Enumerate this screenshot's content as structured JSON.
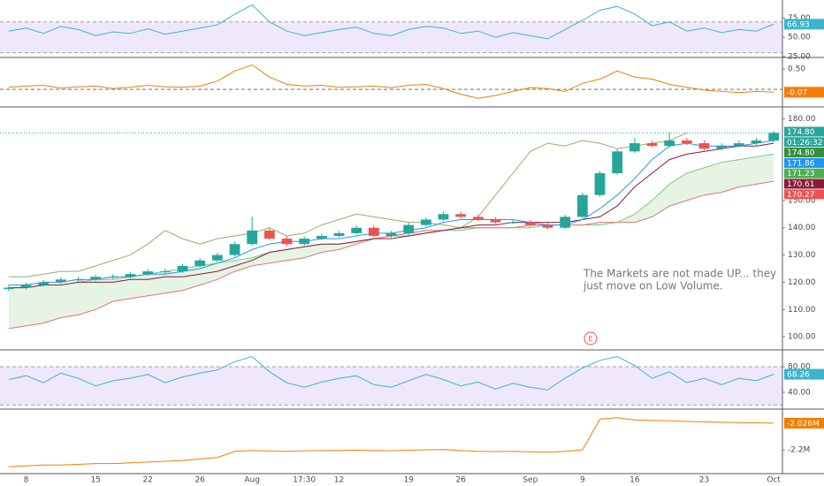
{
  "chart_data": [
    {
      "type": "line",
      "ylim": [
        25,
        96
      ],
      "yticks": [
        {
          "value": 75,
          "label": "75.00"
        },
        {
          "value": 50,
          "label": "50.00"
        },
        {
          "value": 25,
          "label": "25.00"
        }
      ],
      "levels": [
        30,
        70
      ],
      "band_color": "#efe8fb",
      "level_color": "#a0a0a0",
      "series": [
        {
          "color": "#3cb4cf",
          "values": [
            58,
            62,
            55,
            64,
            60,
            52,
            57,
            55,
            61,
            54,
            58,
            62,
            66,
            80,
            92,
            70,
            58,
            52,
            56,
            60,
            63,
            55,
            52,
            60,
            64,
            62,
            55,
            58,
            50,
            56,
            52,
            48,
            60,
            72,
            85,
            90,
            80,
            65,
            70,
            58,
            62,
            56,
            60,
            58,
            66.93
          ]
        }
      ]
    },
    {
      "type": "line",
      "ylim": [
        -0.41,
        0.76
      ],
      "yticks": [
        {
          "value": 0.5,
          "label": "0.50"
        }
      ],
      "levels": [
        0
      ],
      "level_color": "#707070",
      "series": [
        {
          "color": "#f57c00",
          "values": [
            0.05,
            0.08,
            0.1,
            0.03,
            0.06,
            0.08,
            0.02,
            0.05,
            0.1,
            0.06,
            0.05,
            0.08,
            0.2,
            0.45,
            0.6,
            0.3,
            0.12,
            0.08,
            0.1,
            0.05,
            0.06,
            0.08,
            0.04,
            0.1,
            0.12,
            0.02,
            -0.12,
            -0.22,
            -0.15,
            -0.05,
            0.04,
            0.02,
            -0.05,
            0.15,
            0.25,
            0.45,
            0.3,
            0.25,
            0.12,
            0.05,
            -0.02,
            -0.05,
            -0.08,
            -0.05,
            -0.07
          ]
        }
      ]
    },
    {
      "type": "candlestick",
      "ylim": [
        95.5,
        184
      ],
      "yticks": [
        {
          "value": 180,
          "label": "180.00"
        },
        {
          "value": 150,
          "label": "150.00"
        },
        {
          "value": 140,
          "label": "140.00"
        },
        {
          "value": 130,
          "label": "130.00"
        },
        {
          "value": 120,
          "label": "120.00"
        },
        {
          "value": 110,
          "label": "110.00"
        },
        {
          "value": 100,
          "label": "100.00"
        }
      ],
      "categories": [
        null,
        "8",
        null,
        null,
        null,
        "15",
        null,
        null,
        "22",
        null,
        null,
        "26",
        null,
        null,
        "Aug",
        null,
        null,
        "17:30",
        null,
        "12",
        null,
        null,
        null,
        "19",
        null,
        null,
        "26",
        null,
        null,
        null,
        "Sep",
        null,
        null,
        "9",
        null,
        null,
        "16",
        null,
        null,
        null,
        "23",
        null,
        null,
        null,
        "Oct"
      ],
      "up_color": "#26a69a",
      "down_color": "#ef5350",
      "candles": {
        "open": [
          117.5,
          118,
          119,
          120,
          121,
          121,
          122,
          122,
          123,
          124,
          124,
          126,
          128,
          130,
          134,
          139,
          136,
          134,
          136,
          137,
          138,
          140,
          137,
          138,
          141,
          143,
          145,
          144,
          143,
          142,
          142,
          141,
          140,
          144,
          152,
          160,
          168,
          171,
          170,
          172,
          171,
          169,
          170,
          171,
          172
        ],
        "high": [
          119,
          119.8,
          120.8,
          121.8,
          122,
          122.8,
          123,
          123.8,
          124.8,
          125,
          126.8,
          128.8,
          130.8,
          134.8,
          144,
          139.8,
          136.8,
          136.8,
          137.8,
          138.8,
          140.8,
          140.8,
          138.8,
          141.8,
          143.8,
          145.8,
          146,
          144.8,
          143.8,
          142.8,
          142.8,
          141.8,
          144.8,
          152.8,
          160.8,
          168.8,
          173,
          172,
          175,
          173,
          172,
          171,
          172,
          173,
          175.5
        ],
        "low": [
          116.8,
          117.4,
          118.4,
          119.4,
          120.2,
          120.4,
          121.2,
          121.4,
          122.4,
          123.2,
          123.4,
          125.4,
          127.4,
          129.4,
          133.4,
          135.4,
          133.2,
          133.4,
          135.4,
          136.4,
          137.4,
          136.4,
          136.4,
          137.4,
          140.4,
          142.4,
          143.4,
          142.4,
          141.4,
          141.4,
          140.4,
          139.4,
          139.4,
          143.4,
          151.4,
          159.4,
          167.4,
          169.4,
          169.4,
          170.4,
          168.4,
          168.4,
          169.4,
          170.4,
          171.4
        ],
        "close": [
          118,
          119,
          120,
          121,
          121,
          122,
          122,
          123,
          124,
          124,
          126,
          128,
          130,
          134,
          139,
          136,
          134,
          136,
          137,
          138,
          140,
          137,
          138,
          141,
          143,
          145,
          144,
          143,
          142,
          142,
          141,
          140,
          144,
          152,
          160,
          168,
          171,
          170,
          172,
          171,
          169,
          170,
          171,
          172,
          174.8
        ]
      },
      "price_line_color": "#26a69a",
      "cloud": {
        "fill": "#e6f4e4",
        "upper": {
          "color": "#81c784",
          "values": [
            118,
            118,
            119,
            119,
            120,
            121,
            121,
            122,
            123,
            124,
            125,
            126,
            127,
            128,
            129,
            131,
            132,
            133,
            134,
            134,
            135,
            136,
            137,
            137,
            138,
            139,
            139,
            140,
            140,
            140,
            140,
            141,
            141,
            141,
            141,
            142,
            145,
            150,
            156,
            160,
            162,
            164,
            165,
            166,
            167
          ]
        },
        "lower": {
          "color": "#e57373",
          "values": [
            103,
            104,
            105,
            107,
            108,
            110,
            113,
            114,
            115,
            116,
            117,
            119,
            121,
            124,
            126,
            127,
            128,
            129,
            131,
            132,
            134,
            136,
            137,
            138,
            139,
            139,
            140,
            140,
            140,
            140,
            141,
            141,
            141,
            141,
            142,
            142,
            142,
            144,
            148,
            150,
            152,
            153,
            155,
            156,
            157
          ]
        }
      },
      "overlays": [
        {
          "color": "#9aab6a",
          "values": [
            122,
            122,
            123,
            124,
            124,
            126,
            128,
            130,
            134,
            139,
            136,
            134,
            136,
            137,
            138,
            140,
            137,
            138,
            141,
            143,
            145,
            144,
            143,
            142,
            142,
            141,
            140,
            144,
            152,
            160,
            168,
            171,
            170,
            172,
            171,
            169,
            170,
            171,
            172,
            174.8,
            null,
            null,
            null,
            null,
            null
          ]
        },
        {
          "color": "#8b1a3a",
          "values": [
            118,
            118,
            119,
            119,
            120,
            120,
            120,
            121,
            121,
            122,
            122,
            123,
            124,
            126,
            128,
            131,
            132,
            133,
            134,
            134,
            135,
            136,
            136,
            137,
            138,
            139,
            140,
            141,
            141,
            142,
            142,
            142,
            142,
            143,
            144,
            148,
            155,
            160,
            165,
            167,
            168,
            169,
            170,
            170,
            171
          ]
        },
        {
          "color": "#2196f3",
          "values": [
            119,
            119,
            120,
            120,
            121,
            121,
            122,
            122,
            123,
            123,
            124,
            125,
            127,
            129,
            132,
            134,
            135,
            135,
            136,
            136,
            137,
            138,
            138,
            139,
            140,
            142,
            143,
            143,
            143,
            143,
            142,
            141,
            141,
            143,
            147,
            152,
            158,
            165,
            170,
            171,
            170,
            170,
            170,
            171,
            172
          ]
        }
      ],
      "price_labels": [
        {
          "label": "174.80",
          "color": "#26a69a"
        },
        {
          "label": "01:26:32",
          "color": "#26a69a"
        },
        {
          "label": "174.80",
          "color": "#388e3c"
        },
        {
          "label": "171.86",
          "color": "#2196f3"
        },
        {
          "label": "171.23",
          "color": "#4caf50"
        },
        {
          "label": "170.61",
          "color": "#8b1a3a"
        },
        {
          "label": "170.27",
          "color": "#ef5350"
        }
      ],
      "annotation": [
        "The Markets are not made UP... they",
        "just move on Low Volume."
      ],
      "event_marker": "E"
    },
    {
      "type": "line",
      "ylim": [
        15,
        105
      ],
      "yticks": [
        {
          "value": 80,
          "label": "80.00"
        },
        {
          "value": 40,
          "label": "40.00"
        }
      ],
      "levels": [
        20,
        80
      ],
      "band_color": "#efe8fb",
      "level_color": "#a0a0a0",
      "series": [
        {
          "color": "#3cb4cf",
          "values": [
            60,
            66,
            55,
            70,
            62,
            50,
            58,
            62,
            68,
            55,
            64,
            70,
            75,
            88,
            96,
            72,
            55,
            48,
            56,
            62,
            66,
            52,
            48,
            58,
            68,
            60,
            50,
            56,
            45,
            54,
            48,
            44,
            62,
            78,
            90,
            96,
            82,
            62,
            72,
            55,
            62,
            52,
            62,
            58,
            68.26
          ]
        }
      ]
    },
    {
      "type": "line",
      "ylim": [
        -2350000,
        -1940000
      ],
      "yticks": [
        {
          "value": -2200000,
          "label": "-2.2M"
        }
      ],
      "last_label": "-2.026M",
      "series": [
        {
          "color": "#f57c00",
          "values": [
            -2310000,
            -2305000,
            -2300000,
            -2300000,
            -2295000,
            -2290000,
            -2290000,
            -2285000,
            -2280000,
            -2275000,
            -2270000,
            -2260000,
            -2250000,
            -2210000,
            -2205000,
            -2208000,
            -2210000,
            -2206000,
            -2205000,
            -2204000,
            -2203000,
            -2205000,
            -2206000,
            -2203000,
            -2200000,
            -2198000,
            -2205000,
            -2210000,
            -2212000,
            -2210000,
            -2214000,
            -2216000,
            -2210000,
            -2200000,
            -2000000,
            -1990000,
            -2005000,
            -2008000,
            -2010000,
            -2015000,
            -2018000,
            -2020000,
            -2022000,
            -2024000,
            -2026000
          ]
        }
      ]
    }
  ]
}
